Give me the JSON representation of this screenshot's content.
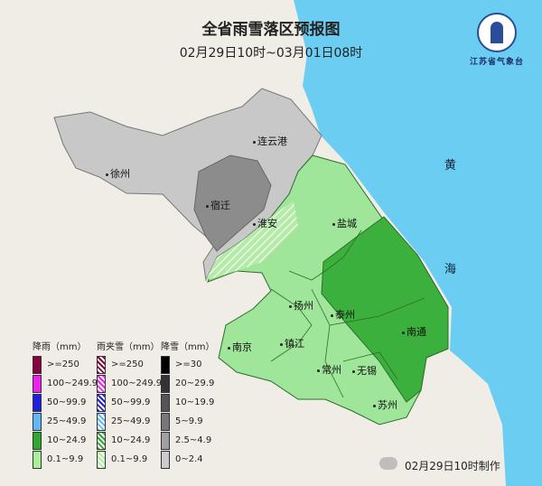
{
  "title": "全省雨雪落区预报图",
  "subtitle": "02月29日10时~03月01日08时",
  "logo": {
    "text": "江苏省气象台"
  },
  "colors": {
    "sea": "#6ccdf2",
    "land": "#f0ede7",
    "light_gray": "#c8c8c8",
    "mid_gray": "#8c8c8c",
    "light_green": "#9fe59a",
    "green": "#3cb03c"
  },
  "cities": [
    "连云港",
    "徐州",
    "宿迁",
    "淮安",
    "盐城",
    "扬州",
    "泰州",
    "南通",
    "南京",
    "镇江",
    "常州",
    "无锡",
    "苏州"
  ],
  "sea_labels": [
    "黄",
    "海"
  ],
  "legend": [
    {
      "title": "降雨（mm）",
      "items": [
        {
          "label": ">=250",
          "color": "#8b0040"
        },
        {
          "label": "100~249.9",
          "color": "#f020f0"
        },
        {
          "label": "50~99.9",
          "color": "#2020e0"
        },
        {
          "label": "25~49.9",
          "color": "#60b8f8"
        },
        {
          "label": "10~24.9",
          "color": "#30a830"
        },
        {
          "label": "0.1~9.9",
          "color": "#a8f098"
        }
      ]
    },
    {
      "title": "雨夹雪（mm）",
      "items": [
        {
          "label": ">=250",
          "color": "#8b0040"
        },
        {
          "label": "100~249.9",
          "color": "#f020f0"
        },
        {
          "label": "50~99.9",
          "color": "#2020e0"
        },
        {
          "label": "25~49.9",
          "color": "#60b8f8"
        },
        {
          "label": "10~24.9",
          "color": "#30a830"
        },
        {
          "label": "0.1~9.9",
          "color": "#a8f098"
        }
      ]
    },
    {
      "title": "降雪（mm）",
      "items": [
        {
          "label": ">=30",
          "color": "#000000"
        },
        {
          "label": "20~29.9",
          "color": "#333333"
        },
        {
          "label": "10~19.9",
          "color": "#555555"
        },
        {
          "label": "5~9.9",
          "color": "#777777"
        },
        {
          "label": "2.5~4.9",
          "color": "#a0a0a0"
        },
        {
          "label": "0~2.4",
          "color": "#cccccc"
        }
      ]
    }
  ],
  "footer": "02月29日10时制作"
}
